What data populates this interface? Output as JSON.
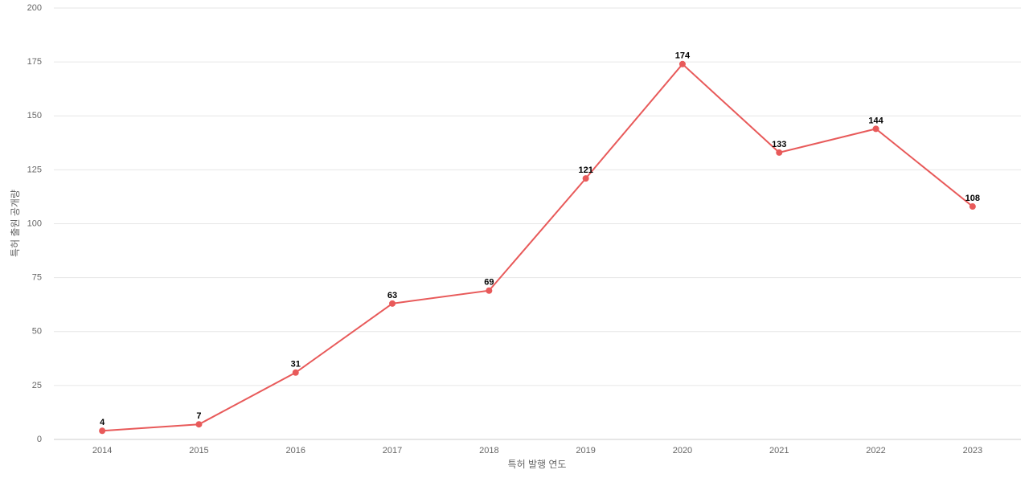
{
  "chart_data": {
    "type": "line",
    "x_label": "특허 발행 연도",
    "y_label": "특허 출원 공개량",
    "categories": [
      "2014",
      "2015",
      "2016",
      "2017",
      "2018",
      "2019",
      "2020",
      "2021",
      "2022",
      "2023"
    ],
    "series": [
      {
        "color": "#e85a5a",
        "values": [
          4,
          7,
          31,
          63,
          69,
          121,
          174,
          133,
          144,
          108
        ]
      }
    ],
    "ylim": [
      0,
      200
    ],
    "yticks": [
      0,
      25,
      50,
      75,
      100,
      125,
      150,
      175,
      200
    ],
    "grid": true
  }
}
